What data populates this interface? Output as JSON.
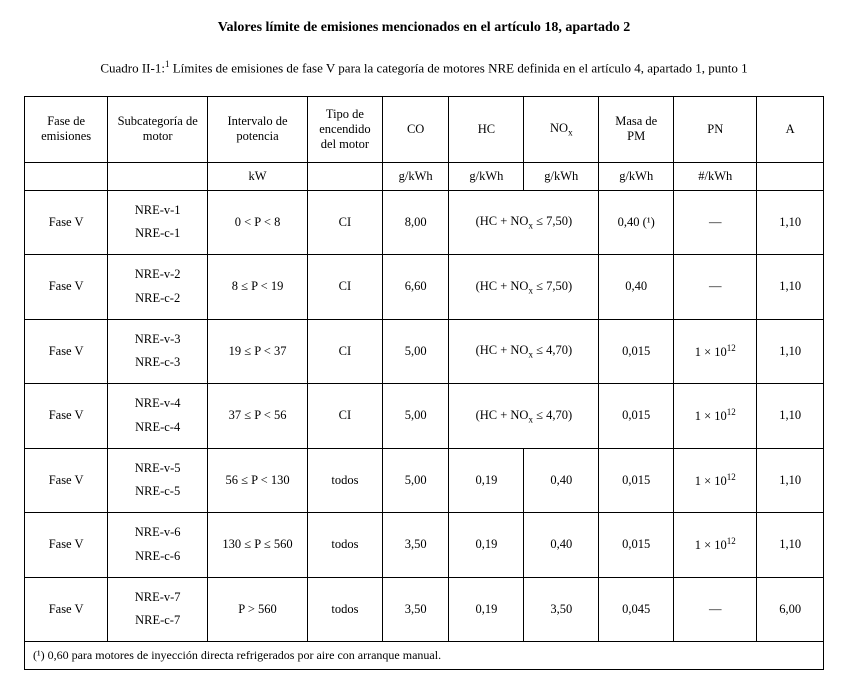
{
  "title": "Valores límite de emisiones mencionados en el artículo 18, apartado 2",
  "caption_prefix": "Cuadro II-1:",
  "caption_body": " Límites de emisiones de fase V para la categoría de motores NRE definida en el artículo 4, apartado 1, punto 1",
  "headers": {
    "c1": "Fase de emisiones",
    "c2": "Subcategoría de motor",
    "c3": "Intervalo de potencia",
    "c4": "Tipo de encen­dido del motor",
    "c5": "CO",
    "c6": "HC",
    "c7": "NO",
    "c8": "Masa de PM",
    "c9": "PN",
    "c10": "A"
  },
  "units": {
    "c3": "kW",
    "c5": "g/kWh",
    "c6": "g/kWh",
    "c7": "g/kWh",
    "c8": "g/kWh",
    "c9": "#/kWh"
  },
  "rows": [
    {
      "fase": "Fase V",
      "sub_a": "NRE-v-1",
      "sub_b": "NRE-c-1",
      "pot": "0 < P < 8",
      "tipo": "CI",
      "co": "8,00",
      "hcnox": "(HC + NOₓ ≤ 7,50)",
      "pm": "0,40 (¹)",
      "pn": "—",
      "a": "1,10",
      "merge_hcnox": true
    },
    {
      "fase": "Fase V",
      "sub_a": "NRE-v-2",
      "sub_b": "NRE-c-2",
      "pot": "8 ≤ P < 19",
      "tipo": "CI",
      "co": "6,60",
      "hcnox": "(HC + NOₓ ≤ 7,50)",
      "pm": "0,40",
      "pn": "—",
      "a": "1,10",
      "merge_hcnox": true
    },
    {
      "fase": "Fase V",
      "sub_a": "NRE-v-3",
      "sub_b": "NRE-c-3",
      "pot": "19 ≤ P < 37",
      "tipo": "CI",
      "co": "5,00",
      "hcnox": "(HC + NOₓ ≤ 4,70)",
      "pm": "0,015",
      "pn": "1 × 10¹²",
      "a": "1,10",
      "merge_hcnox": true
    },
    {
      "fase": "Fase V",
      "sub_a": "NRE-v-4",
      "sub_b": "NRE-c-4",
      "pot": "37 ≤ P < 56",
      "tipo": "CI",
      "co": "5,00",
      "hcnox": "(HC + NOₓ ≤ 4,70)",
      "pm": "0,015",
      "pn": "1 × 10¹²",
      "a": "1,10",
      "merge_hcnox": true
    },
    {
      "fase": "Fase V",
      "sub_a": "NRE-v-5",
      "sub_b": "NRE-c-5",
      "pot": "56 ≤ P < 130",
      "tipo": "todos",
      "co": "5,00",
      "hc": "0,19",
      "nox": "0,40",
      "pm": "0,015",
      "pn": "1 × 10¹²",
      "a": "1,10",
      "merge_hcnox": false
    },
    {
      "fase": "Fase V",
      "sub_a": "NRE-v-6",
      "sub_b": "NRE-c-6",
      "pot": "130 ≤ P ≤ 560",
      "tipo": "todos",
      "co": "3,50",
      "hc": "0,19",
      "nox": "0,40",
      "pm": "0,015",
      "pn": "1 × 10¹²",
      "a": "1,10",
      "merge_hcnox": false
    },
    {
      "fase": "Fase V",
      "sub_a": "NRE-v-7",
      "sub_b": "NRE-c-7",
      "pot": "P > 560",
      "tipo": "todos",
      "co": "3,50",
      "hc": "0,19",
      "nox": "3,50",
      "pm": "0,045",
      "pn": "—",
      "a": "6,00",
      "merge_hcnox": false
    }
  ],
  "footnote": "(¹)  0,60 para motores de inyección directa refrigerados por aire con arranque manual.",
  "colwidths": [
    "10%",
    "12%",
    "12%",
    "9%",
    "8%",
    "9%",
    "9%",
    "9%",
    "10%",
    "8%"
  ]
}
